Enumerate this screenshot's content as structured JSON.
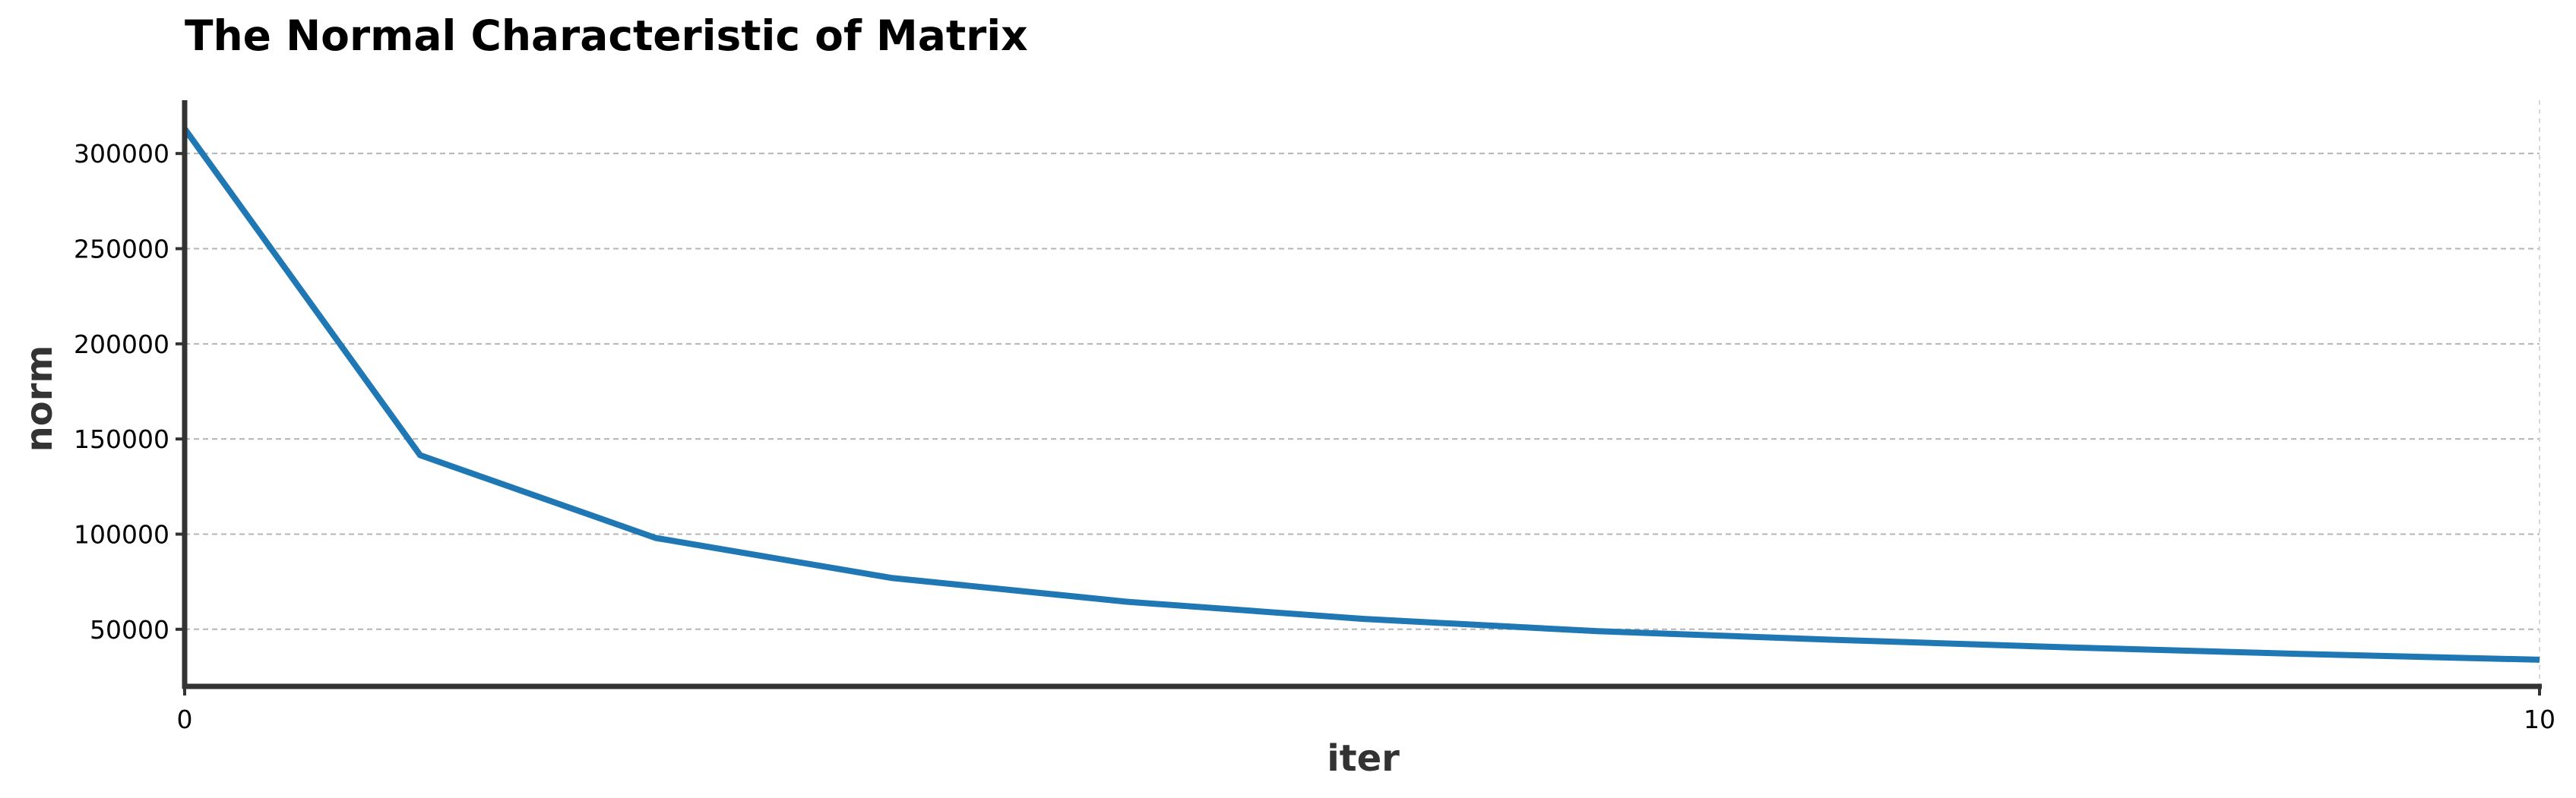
{
  "chart_data": {
    "type": "line",
    "title": "The Normal Characteristic of Matrix",
    "xlabel": "iter",
    "ylabel": "norm",
    "xlim": [
      0,
      10
    ],
    "ylim": [
      20000,
      328000
    ],
    "xticks": [
      0,
      10
    ],
    "yticks": [
      50000,
      100000,
      150000,
      200000,
      250000,
      300000
    ],
    "grid": "y",
    "legend": "none",
    "colors": {
      "series": "#1f77b4",
      "spine": "#333333"
    },
    "series": [
      {
        "x": [
          0,
          1,
          2,
          3,
          4,
          5,
          6,
          7,
          8,
          9,
          10
        ],
        "values": [
          313000,
          141500,
          98000,
          77000,
          64500,
          55500,
          49000,
          44500,
          40500,
          37000,
          34000
        ]
      }
    ]
  }
}
